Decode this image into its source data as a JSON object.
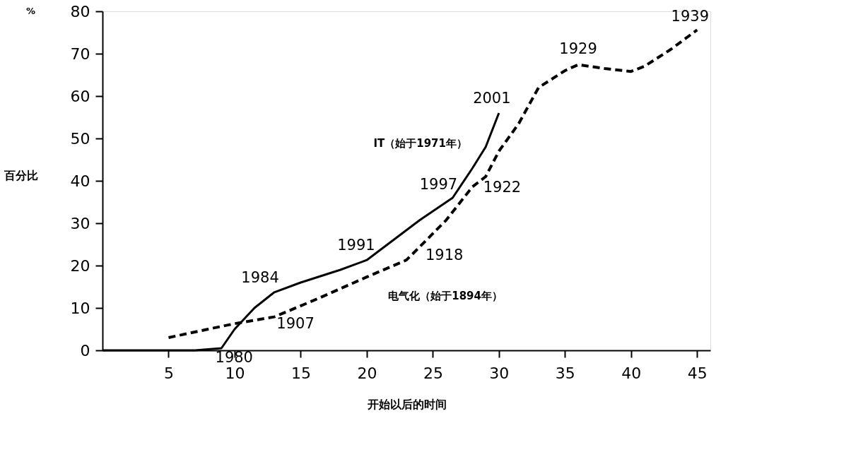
{
  "chart_data": {
    "type": "line",
    "xlabel": "开始以后的时间",
    "ylabel": "百分比",
    "xlim": [
      0,
      46
    ],
    "xticks": [
      5,
      10,
      15,
      20,
      25,
      30,
      35,
      40,
      45
    ],
    "ylim": [
      0,
      80
    ],
    "yticks": [
      0,
      10,
      20,
      30,
      40,
      50,
      60,
      70,
      80
    ],
    "grid": false,
    "marker": "none",
    "series": [
      {
        "name": "IT（始于1971年）",
        "color": "#000000",
        "line_style": "solid",
        "x": [
          0,
          5,
          7,
          9,
          10,
          11.5,
          13,
          15,
          18,
          20,
          22,
          24,
          26.5,
          28,
          29,
          30
        ],
        "values": [
          0,
          0,
          0,
          0.5,
          5,
          10,
          13.7,
          16,
          19,
          21.3,
          26,
          30.7,
          36,
          43,
          48,
          56
        ]
      },
      {
        "name": "电气化（始于1894年）",
        "color": "#000000",
        "line_style": "dashed",
        "x": [
          5,
          8,
          10,
          13,
          16,
          20,
          23,
          24,
          26,
          28,
          29,
          30,
          31.5,
          33,
          35,
          36,
          38,
          40,
          41,
          43,
          45
        ],
        "values": [
          3,
          5,
          6.3,
          7.9,
          11.8,
          17.3,
          21.3,
          24.4,
          30.7,
          38.6,
          41,
          47,
          53.5,
          62,
          66,
          67.4,
          66.5,
          65.8,
          67,
          71,
          75.6
        ]
      }
    ],
    "annotations": [
      "%",
      {
        "text": "1980",
        "x": 9,
        "y": 0.5
      },
      {
        "text": "1984",
        "x": 13,
        "y": 13.7
      },
      {
        "text": "1991",
        "x": 20,
        "y": 21.3
      },
      {
        "text": "1997",
        "x": 26.5,
        "y": 36
      },
      {
        "text": "2001",
        "x": 30,
        "y": 56
      },
      {
        "text": "1907",
        "x": 13,
        "y": 7.9
      },
      {
        "text": "1918",
        "x": 24,
        "y": 24.4
      },
      {
        "text": "1922",
        "x": 28,
        "y": 38.6
      },
      {
        "text": "1929",
        "x": 36,
        "y": 67.4
      },
      {
        "text": "1939",
        "x": 45,
        "y": 75.6
      }
    ]
  }
}
